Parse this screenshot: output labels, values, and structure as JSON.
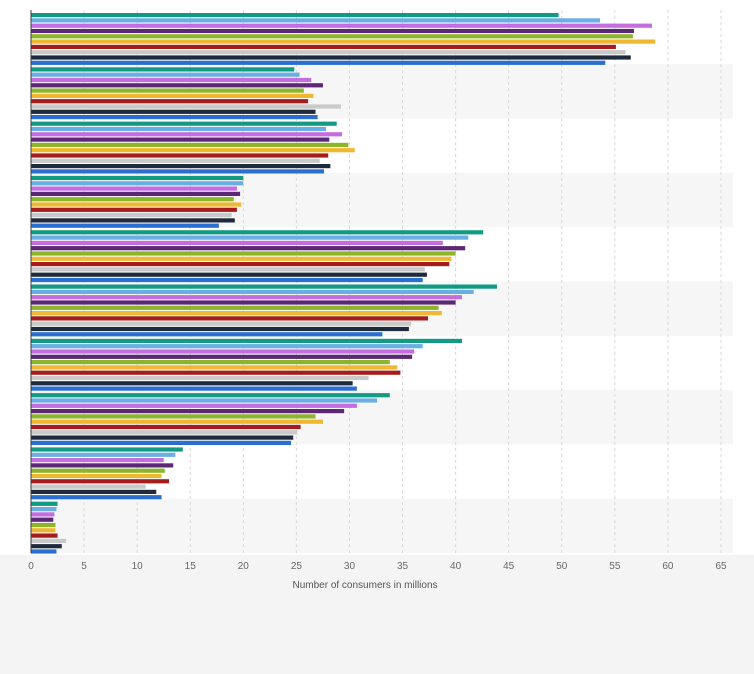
{
  "chart_data": {
    "type": "bar",
    "orientation": "horizontal",
    "title": "",
    "xlabel": "Number of consumers in millions",
    "ylabel": "",
    "xlim": [
      0,
      65
    ],
    "x_ticks": [
      0,
      5,
      10,
      15,
      20,
      25,
      30,
      35,
      40,
      45,
      50,
      55,
      60,
      65
    ],
    "grid": true,
    "legend": "none",
    "categories": [
      "",
      "",
      "",
      "",
      "",
      "",
      "",
      "",
      "",
      ""
    ],
    "series": [
      {
        "color": "#139a84",
        "values": [
          49.7,
          24.8,
          28.8,
          20.0,
          42.6,
          43.9,
          40.6,
          33.8,
          14.3,
          2.5
        ]
      },
      {
        "color": "#6aaee3",
        "values": [
          53.6,
          25.3,
          27.8,
          20.0,
          41.2,
          41.7,
          36.9,
          32.6,
          13.6,
          2.4
        ]
      },
      {
        "color": "#c36ddf",
        "values": [
          58.5,
          26.4,
          29.3,
          19.4,
          38.8,
          40.6,
          36.1,
          30.7,
          12.5,
          2.2
        ]
      },
      {
        "color": "#5c2774",
        "values": [
          56.8,
          27.5,
          28.1,
          19.7,
          40.9,
          40.0,
          35.9,
          29.5,
          13.4,
          2.1
        ]
      },
      {
        "color": "#8cb529",
        "values": [
          56.7,
          25.7,
          29.9,
          19.1,
          40.0,
          38.4,
          33.8,
          26.8,
          12.6,
          2.3
        ]
      },
      {
        "color": "#f0b731",
        "values": [
          58.8,
          26.6,
          30.5,
          19.8,
          39.6,
          38.7,
          34.5,
          27.5,
          12.3,
          2.3
        ]
      },
      {
        "color": "#a51c1c",
        "values": [
          55.1,
          26.1,
          28.0,
          19.4,
          39.4,
          37.4,
          34.8,
          25.4,
          13.0,
          2.5
        ]
      },
      {
        "color": "#c9c9c9",
        "values": [
          56.0,
          29.2,
          27.2,
          18.9,
          37.1,
          35.8,
          31.8,
          25.1,
          10.8,
          3.3
        ]
      },
      {
        "color": "#1e2b3c",
        "values": [
          56.5,
          26.8,
          28.2,
          19.2,
          37.3,
          35.6,
          30.3,
          24.7,
          11.8,
          2.9
        ]
      },
      {
        "color": "#2a6fd0",
        "values": [
          54.1,
          27.0,
          27.6,
          17.7,
          36.9,
          33.1,
          30.7,
          24.5,
          12.3,
          2.4
        ]
      }
    ]
  }
}
